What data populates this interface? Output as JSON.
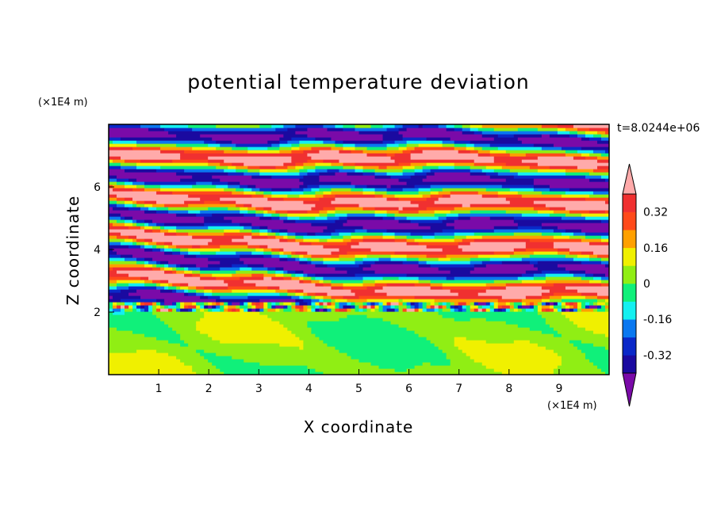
{
  "chart_data": {
    "type": "heatmap",
    "title": "potential temperature deviation",
    "time_label": "t=8.0244e+06",
    "x_axis": {
      "label": "X coordinate",
      "unit": "(×1E4 m)",
      "range": [
        0,
        10
      ],
      "ticks": [
        1,
        2,
        3,
        4,
        5,
        6,
        7,
        8,
        9
      ]
    },
    "y_axis": {
      "label": "Z coordinate",
      "unit": "(×1E4 m)",
      "range": [
        0,
        8
      ],
      "ticks": [
        2,
        4,
        6
      ]
    },
    "colorbar": {
      "levels": [
        -0.4,
        -0.32,
        -0.24,
        -0.16,
        -0.08,
        0,
        0.08,
        0.16,
        0.24,
        0.32,
        0.4
      ],
      "colors": [
        "#7a0aa8",
        "#1a0aa0",
        "#0a28c8",
        "#0a78f0",
        "#14f0f0",
        "#10f07a",
        "#90ee14",
        "#f0f000",
        "#ffa000",
        "#ff4a1a",
        "#f03030",
        "#ffaaaa"
      ],
      "tick_labels": [
        "0.32",
        "0.16",
        "0",
        "-0.16",
        "-0.32"
      ],
      "tick_values": [
        0.32,
        0.16,
        0,
        -0.16,
        -0.32
      ],
      "extend": "both"
    }
  }
}
